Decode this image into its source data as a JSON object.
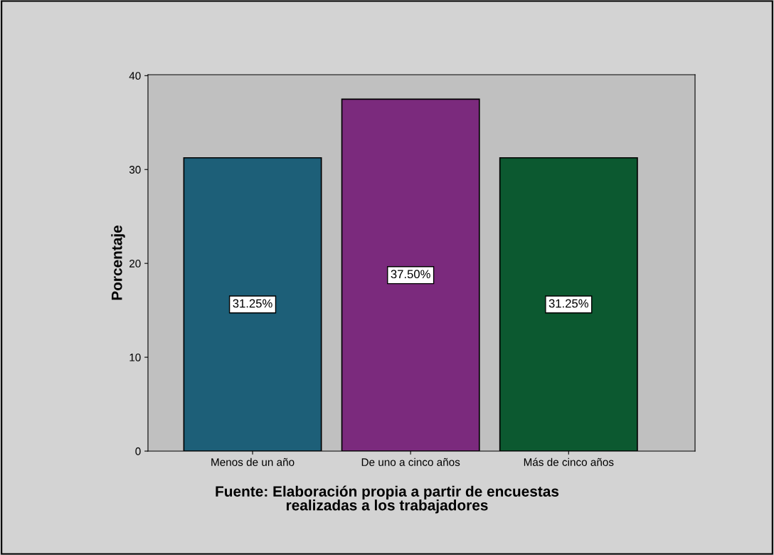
{
  "chart_data": {
    "type": "bar",
    "ylabel": "Porcentaje",
    "categories": [
      "Menos de un año",
      "De uno a cinco años",
      "Más de cinco años"
    ],
    "values": [
      31.25,
      37.5,
      31.25
    ],
    "colors": [
      "#1d5f78",
      "#7b2a7d",
      "#0c5930"
    ],
    "value_labels": [
      "31.25%",
      "37.50%",
      "31.25%"
    ],
    "ylim": [
      0,
      40.1
    ],
    "yticks": [
      0,
      10,
      20,
      30,
      40
    ],
    "grid": false,
    "legend": false,
    "annotations": [
      "Fuente: Elaboración propia a partir de encuestas\nrealizadas a los trabajadores"
    ]
  }
}
